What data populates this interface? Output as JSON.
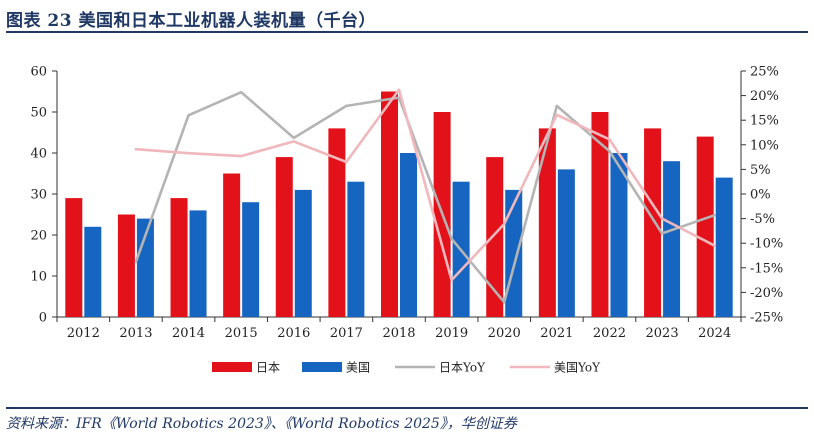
{
  "figure": {
    "title": "图表 23   美国和日本工业机器人装机量（千台）",
    "source": "资料来源：IFR《World Robotics 2023》、《World Robotics 2025》，华创证券"
  },
  "chart_data": {
    "type": "bar",
    "title": "",
    "categories": [
      "2012",
      "2013",
      "2014",
      "2015",
      "2016",
      "2017",
      "2018",
      "2019",
      "2020",
      "2021",
      "2022",
      "2023",
      "2024"
    ],
    "series": [
      {
        "name": "日本",
        "type": "bar",
        "axis": "left",
        "color": "#e3111a",
        "values": [
          29,
          25,
          29,
          35,
          39,
          46,
          55,
          50,
          39,
          46,
          50,
          46,
          44
        ]
      },
      {
        "name": "美国",
        "type": "bar",
        "axis": "left",
        "color": "#1665c0",
        "values": [
          22,
          24,
          26,
          28,
          31,
          33,
          40,
          33,
          31,
          36,
          40,
          38,
          34
        ]
      },
      {
        "name": "日本YoY",
        "type": "line",
        "axis": "right",
        "color": "#b4b4b4",
        "values": [
          null,
          -13.8,
          16,
          20.7,
          11.4,
          17.9,
          19.6,
          -9.1,
          -22,
          17.9,
          8.7,
          -8,
          -4.3
        ]
      },
      {
        "name": "美国YoY",
        "type": "line",
        "axis": "right",
        "color": "#f0b7bc",
        "values": [
          null,
          9.1,
          8.3,
          7.7,
          10.7,
          6.5,
          21.2,
          -17.5,
          -6.1,
          16.1,
          11.1,
          -5,
          -10.5
        ]
      }
    ],
    "y_left": {
      "range": [
        0,
        60
      ],
      "ticks": [
        "0",
        "10",
        "20",
        "30",
        "40",
        "50",
        "60"
      ]
    },
    "y_right": {
      "range": [
        -25,
        25
      ],
      "ticks": [
        "-25%",
        "-20%",
        "-15%",
        "-10%",
        "-5%",
        "0%",
        "5%",
        "10%",
        "15%",
        "20%",
        "25%"
      ]
    },
    "legend": {
      "position": "bottom"
    },
    "grid": false
  }
}
